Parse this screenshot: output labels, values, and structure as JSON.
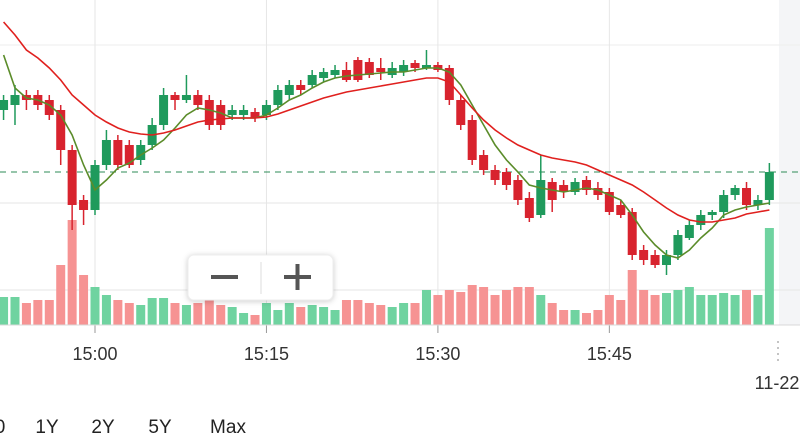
{
  "chart_data": {
    "type": "candlestick",
    "categories": [
      null,
      null,
      null,
      null,
      null,
      null,
      null,
      null,
      "15:00",
      null,
      null,
      null,
      null,
      null,
      null,
      null,
      null,
      null,
      null,
      null,
      null,
      null,
      null,
      "15:15",
      null,
      null,
      null,
      null,
      null,
      null,
      null,
      null,
      null,
      null,
      null,
      null,
      null,
      null,
      "15:30",
      null,
      null,
      null,
      null,
      null,
      null,
      null,
      null,
      null,
      null,
      null,
      null,
      null,
      null,
      "15:45",
      null,
      null,
      null,
      null,
      null,
      null,
      null,
      null,
      null,
      null,
      null,
      null,
      null,
      null
    ],
    "date_label": "11-22",
    "open": [
      220,
      225,
      235,
      235,
      230,
      220,
      180,
      130,
      120,
      165,
      190,
      185,
      170,
      185,
      205,
      235,
      230,
      235,
      230,
      225,
      215,
      215,
      218,
      215,
      225,
      235,
      245,
      245,
      252,
      255,
      260,
      270,
      268,
      262,
      255,
      258,
      267,
      262,
      265,
      262,
      230,
      210,
      175,
      160,
      158,
      150,
      132,
      115,
      148,
      145,
      138,
      150,
      142,
      138,
      125,
      118,
      80,
      75,
      65,
      75,
      92,
      105,
      115,
      118,
      135,
      142,
      125,
      130
    ],
    "high": [
      235,
      245,
      240,
      240,
      235,
      225,
      185,
      135,
      170,
      200,
      195,
      190,
      190,
      212,
      242,
      238,
      255,
      240,
      235,
      230,
      225,
      225,
      222,
      230,
      245,
      250,
      250,
      260,
      262,
      265,
      268,
      273,
      272,
      272,
      268,
      270,
      270,
      280,
      268,
      265,
      235,
      215,
      180,
      165,
      162,
      155,
      138,
      175,
      152,
      150,
      152,
      154,
      148,
      142,
      130,
      122,
      85,
      80,
      80,
      100,
      110,
      120,
      120,
      140,
      145,
      148,
      135,
      167
    ],
    "low": [
      210,
      205,
      220,
      220,
      210,
      165,
      100,
      105,
      115,
      160,
      160,
      162,
      165,
      180,
      200,
      220,
      227,
      220,
      200,
      200,
      210,
      210,
      208,
      210,
      220,
      230,
      235,
      242,
      248,
      252,
      248,
      248,
      252,
      250,
      252,
      254,
      258,
      260,
      258,
      225,
      200,
      165,
      155,
      145,
      140,
      125,
      108,
      112,
      118,
      132,
      135,
      135,
      130,
      115,
      112,
      70,
      65,
      62,
      55,
      70,
      90,
      100,
      110,
      112,
      130,
      120,
      120,
      125
    ],
    "close": [
      230,
      235,
      230,
      225,
      215,
      180,
      125,
      120,
      165,
      190,
      165,
      165,
      185,
      205,
      235,
      230,
      235,
      225,
      205,
      205,
      220,
      220,
      212,
      225,
      240,
      245,
      240,
      255,
      258,
      260,
      250,
      250,
      255,
      258,
      262,
      265,
      262,
      265,
      260,
      230,
      205,
      170,
      160,
      150,
      145,
      130,
      112,
      150,
      130,
      138,
      148,
      140,
      135,
      118,
      115,
      75,
      70,
      65,
      75,
      95,
      105,
      115,
      118,
      135,
      142,
      125,
      130,
      158
    ],
    "ylim": [
      0,
      330
    ],
    "up_color": "#1f9a5c",
    "down_color": "#d8232e",
    "price_line": 158,
    "series": [
      {
        "color": "#5b8c2a",
        "values": [
          275,
          242,
          232,
          230,
          225,
          215,
          195,
          165,
          140,
          150,
          162,
          167,
          175,
          182,
          190,
          202,
          215,
          222,
          220,
          217,
          212,
          212,
          212,
          215,
          222,
          230,
          235,
          242,
          248,
          252,
          254,
          255,
          256,
          257,
          258,
          258,
          260,
          262,
          262,
          258,
          245,
          225,
          205,
          185,
          170,
          158,
          145,
          142,
          140,
          138,
          140,
          142,
          140,
          135,
          130,
          115,
          98,
          85,
          75,
          72,
          80,
          92,
          102,
          115,
          120,
          123,
          125,
          127
        ]
      },
      {
        "color": "#e0201e",
        "values": [
          308,
          295,
          280,
          272,
          262,
          250,
          235,
          225,
          215,
          208,
          202,
          198,
          196,
          195,
          197,
          200,
          204,
          208,
          210,
          211,
          212,
          212,
          212,
          213,
          216,
          220,
          224,
          228,
          232,
          235,
          238,
          240,
          242,
          244,
          246,
          248,
          250,
          252,
          252,
          248,
          235,
          222,
          210,
          200,
          192,
          185,
          180,
          175,
          172,
          170,
          168,
          165,
          160,
          155,
          150,
          145,
          138,
          130,
          122,
          115,
          110,
          108,
          108,
          110,
          112,
          116,
          118,
          120
        ]
      }
    ],
    "volume": [
      28,
      28,
      22,
      25,
      25,
      60,
      105,
      50,
      38,
      30,
      25,
      22,
      20,
      27,
      27,
      22,
      20,
      22,
      25,
      20,
      18,
      12,
      10,
      22,
      15,
      22,
      18,
      20,
      18,
      15,
      25,
      25,
      22,
      20,
      18,
      22,
      22,
      35,
      30,
      35,
      33,
      40,
      38,
      30,
      35,
      38,
      38,
      30,
      22,
      15,
      15,
      12,
      15,
      30,
      25,
      55,
      35,
      30,
      32,
      35,
      38,
      30,
      30,
      32,
      30,
      35,
      30,
      97
    ],
    "volume_ylim": [
      0,
      100
    ],
    "volume_up_color": "#6fd3a0",
    "volume_down_color": "#f69393"
  },
  "range_buttons": [
    "0",
    "1Y",
    "2Y",
    "5Y",
    "Max"
  ]
}
